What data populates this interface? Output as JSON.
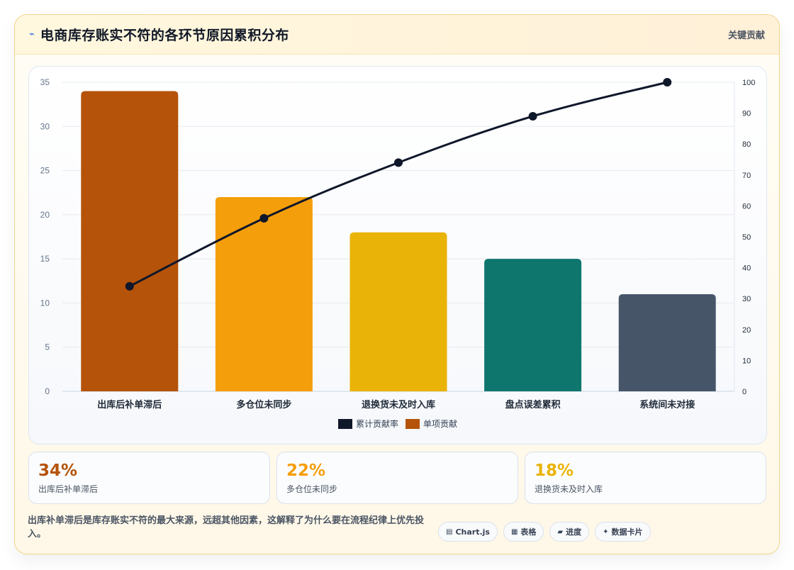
{
  "header": {
    "icon": "lightning-icon",
    "title": "电商库存账实不符的各环节原因累积分布",
    "right_label": "关键贡献"
  },
  "colors": {
    "bars": [
      "#b45309",
      "#f59e0b",
      "#eab308",
      "#0f766e",
      "#475569"
    ],
    "line": "#0f172a",
    "stat_values": [
      "#b45309",
      "#f59e0b",
      "#eab308"
    ]
  },
  "chart_data": {
    "type": "bar",
    "categories": [
      "出库后补单滞后",
      "多仓位未同步",
      "退换货未及时入库",
      "盘点误差累积",
      "系统间未对接"
    ],
    "series": [
      {
        "name": "单项贡献",
        "type": "bar",
        "axis": "left",
        "values": [
          34,
          22,
          18,
          15,
          11
        ]
      },
      {
        "name": "累计贡献率",
        "type": "line",
        "axis": "right",
        "values": [
          34,
          56,
          74,
          89,
          100
        ]
      }
    ],
    "y_left": {
      "lim": [
        0,
        35
      ],
      "ticks": [
        0,
        5,
        10,
        15,
        20,
        25,
        30,
        35
      ]
    },
    "y_right": {
      "lim": [
        0,
        100
      ],
      "ticks": [
        0,
        10,
        20,
        30,
        40,
        50,
        60,
        70,
        80,
        90,
        100
      ]
    },
    "legend": {
      "placement": "bottom",
      "items": [
        {
          "label": "累计贡献率",
          "color": "#0f172a"
        },
        {
          "label": "单项贡献",
          "color": "#b45309"
        }
      ]
    },
    "grid": true
  },
  "stats": [
    {
      "value": "34%",
      "label": "出库后补单滞后"
    },
    {
      "value": "22%",
      "label": "多仓位未同步"
    },
    {
      "value": "18%",
      "label": "退换货未及时入库"
    }
  ],
  "footer": {
    "note": "出库补单滞后是库存账实不符的最大来源，远超其他因素，这解释了为什么要在流程纪律上优先投入。",
    "chips": [
      {
        "icon": "▤",
        "label": "Chart.js"
      },
      {
        "icon": "▦",
        "label": "表格"
      },
      {
        "icon": "▰",
        "label": "进度"
      },
      {
        "icon": "✦",
        "label": "数据卡片"
      }
    ]
  }
}
